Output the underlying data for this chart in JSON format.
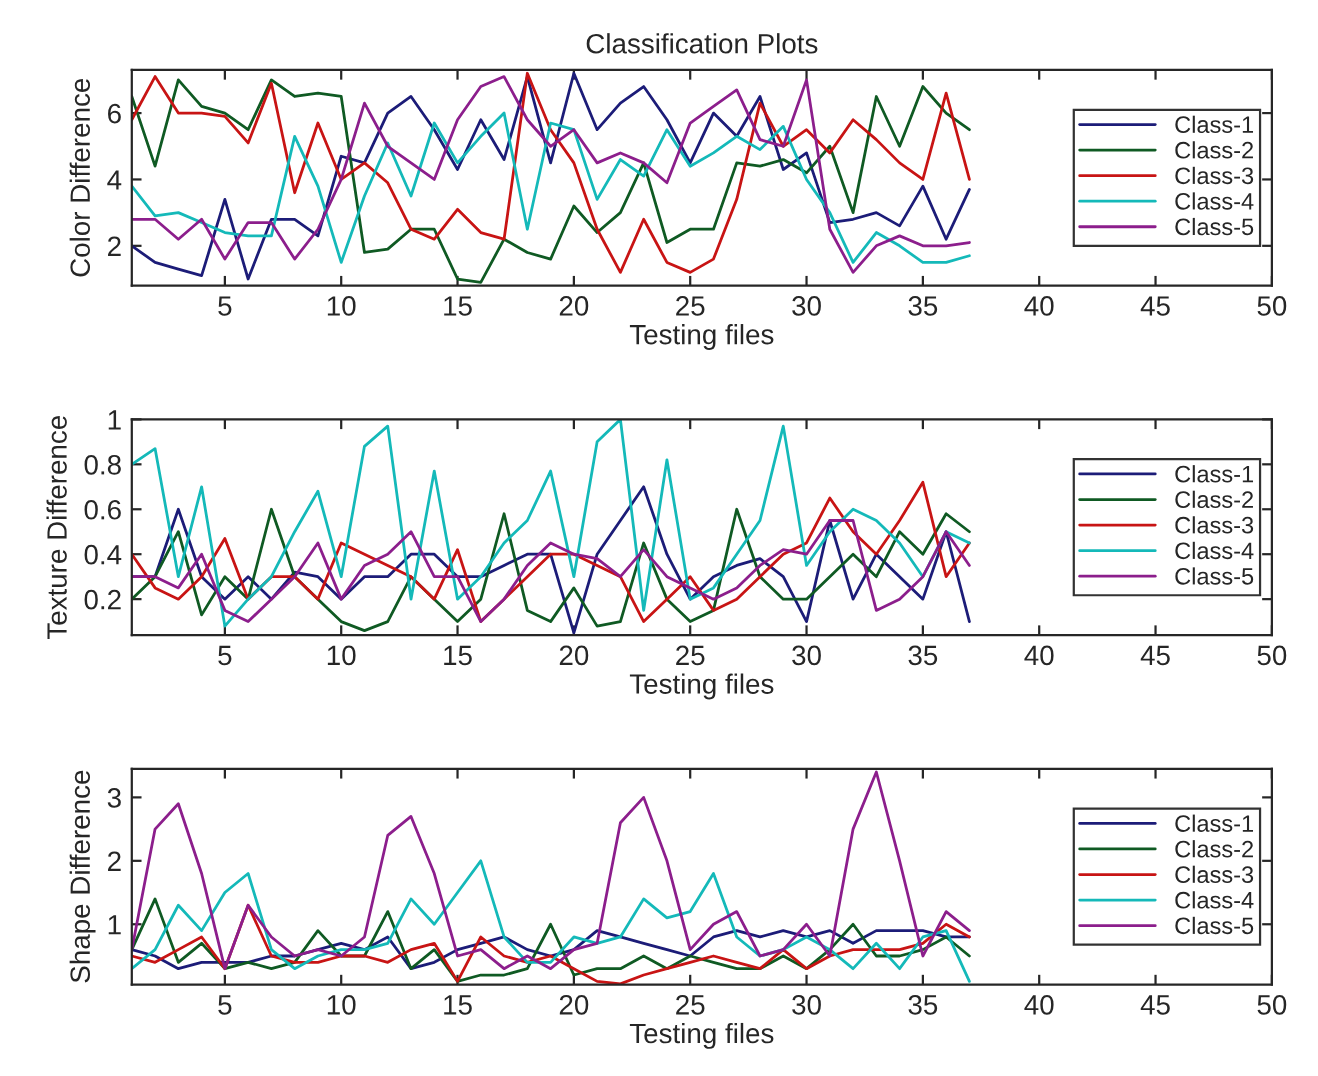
{
  "chart_data": [
    {
      "type": "line",
      "title": "Classification Plots",
      "xlabel": "Testing files",
      "ylabel": "Color Difference",
      "x": [
        1,
        2,
        3,
        4,
        5,
        6,
        7,
        8,
        9,
        10,
        11,
        12,
        13,
        14,
        15,
        16,
        17,
        18,
        19,
        20,
        21,
        22,
        23,
        24,
        25,
        26,
        27,
        28,
        29,
        30,
        31,
        32,
        33,
        34,
        35,
        36,
        37
      ],
      "xlim": [
        1,
        50
      ],
      "xticks": [
        5,
        10,
        15,
        20,
        25,
        30,
        35,
        40,
        45,
        50
      ],
      "ylim": [
        0.8,
        7.3
      ],
      "yticks": [
        2,
        4,
        6
      ],
      "grid": false,
      "legend": "right",
      "series": [
        {
          "name": "Class-1",
          "color": "#1c1c78",
          "values": [
            2.0,
            1.5,
            1.3,
            1.1,
            3.4,
            1.0,
            2.8,
            2.8,
            2.3,
            4.7,
            4.5,
            6.0,
            6.5,
            5.5,
            4.3,
            5.8,
            4.6,
            7.1,
            4.5,
            7.2,
            5.5,
            6.3,
            6.8,
            5.8,
            4.5,
            6.0,
            5.3,
            6.5,
            4.3,
            4.8,
            2.7,
            2.8,
            3.0,
            2.6,
            3.8,
            2.2,
            3.7
          ]
        },
        {
          "name": "Class-2",
          "color": "#0f5a23",
          "values": [
            6.5,
            4.4,
            7.0,
            6.2,
            6.0,
            5.5,
            7.0,
            6.5,
            6.6,
            6.5,
            1.8,
            1.9,
            2.5,
            2.5,
            1.0,
            0.9,
            2.2,
            1.8,
            1.6,
            3.2,
            2.4,
            3.0,
            4.5,
            2.1,
            2.5,
            2.5,
            4.5,
            4.4,
            4.6,
            4.2,
            5.0,
            3.0,
            6.5,
            5.0,
            6.8,
            6.0,
            5.5
          ]
        },
        {
          "name": "Class-3",
          "color": "#c81414",
          "values": [
            5.8,
            7.1,
            6.0,
            6.0,
            5.9,
            5.1,
            6.9,
            3.6,
            5.7,
            4.0,
            4.5,
            3.9,
            2.5,
            2.2,
            3.1,
            2.4,
            2.2,
            7.2,
            5.5,
            4.5,
            2.5,
            1.2,
            2.8,
            1.5,
            1.2,
            1.6,
            3.4,
            6.3,
            5.0,
            5.5,
            4.8,
            5.8,
            5.2,
            4.5,
            4.0,
            6.6,
            4.0
          ]
        },
        {
          "name": "Class-4",
          "color": "#14b9b9",
          "values": [
            3.8,
            2.9,
            3.0,
            2.7,
            2.4,
            2.3,
            2.3,
            5.3,
            3.8,
            1.5,
            3.5,
            5.1,
            3.5,
            5.7,
            4.5,
            5.3,
            6.0,
            2.5,
            5.7,
            5.5,
            3.4,
            4.6,
            4.1,
            5.5,
            4.4,
            4.8,
            5.3,
            4.9,
            5.6,
            4.0,
            3.0,
            1.5,
            2.4,
            2.0,
            1.5,
            1.5,
            1.7
          ]
        },
        {
          "name": "Class-5",
          "color": "#8c1e8c",
          "values": [
            2.8,
            2.8,
            2.2,
            2.8,
            1.6,
            2.7,
            2.7,
            1.6,
            2.5,
            4.0,
            6.3,
            5.0,
            4.5,
            4.0,
            5.8,
            6.8,
            7.1,
            5.8,
            5.0,
            5.5,
            4.5,
            4.8,
            4.5,
            3.9,
            5.7,
            6.2,
            6.7,
            5.2,
            5.0,
            7.0,
            2.5,
            1.2,
            2.0,
            2.3,
            2.0,
            2.0,
            2.1
          ]
        }
      ]
    },
    {
      "type": "line",
      "xlabel": "Testing files",
      "ylabel": "Texture Difference",
      "x": [
        1,
        2,
        3,
        4,
        5,
        6,
        7,
        8,
        9,
        10,
        11,
        12,
        13,
        14,
        15,
        16,
        17,
        18,
        19,
        20,
        21,
        22,
        23,
        24,
        25,
        26,
        27,
        28,
        29,
        30,
        31,
        32,
        33,
        34,
        35,
        36,
        37
      ],
      "xlim": [
        1,
        50
      ],
      "xticks": [
        5,
        10,
        15,
        20,
        25,
        30,
        35,
        40,
        45,
        50
      ],
      "ylim": [
        0.04,
        1
      ],
      "yticks": [
        0.2,
        0.4,
        0.6,
        0.8,
        1
      ],
      "grid": false,
      "legend": "right",
      "series": [
        {
          "name": "Class-1",
          "color": "#1c1c78",
          "values": [
            0.3,
            0.3,
            0.6,
            0.3,
            0.2,
            0.3,
            0.2,
            0.32,
            0.3,
            0.2,
            0.3,
            0.3,
            0.4,
            0.4,
            0.3,
            0.3,
            0.35,
            0.4,
            0.4,
            0.05,
            0.4,
            0.55,
            0.7,
            0.4,
            0.2,
            0.3,
            0.35,
            0.38,
            0.3,
            0.1,
            0.55,
            0.2,
            0.4,
            0.3,
            0.2,
            0.5,
            0.1
          ]
        },
        {
          "name": "Class-2",
          "color": "#0f5a23",
          "values": [
            0.2,
            0.3,
            0.5,
            0.13,
            0.3,
            0.2,
            0.6,
            0.3,
            0.2,
            0.1,
            0.06,
            0.1,
            0.3,
            0.2,
            0.1,
            0.2,
            0.58,
            0.15,
            0.1,
            0.25,
            0.08,
            0.1,
            0.45,
            0.2,
            0.1,
            0.15,
            0.6,
            0.3,
            0.2,
            0.2,
            0.3,
            0.4,
            0.3,
            0.5,
            0.4,
            0.58,
            0.5
          ]
        },
        {
          "name": "Class-3",
          "color": "#c81414",
          "values": [
            0.4,
            0.25,
            0.2,
            0.3,
            0.47,
            0.2,
            0.3,
            0.3,
            0.2,
            0.45,
            0.4,
            0.35,
            0.3,
            0.2,
            0.42,
            0.1,
            0.2,
            0.3,
            0.4,
            0.4,
            0.35,
            0.3,
            0.1,
            0.2,
            0.3,
            0.15,
            0.2,
            0.3,
            0.4,
            0.45,
            0.65,
            0.5,
            0.4,
            0.55,
            0.72,
            0.3,
            0.45
          ]
        },
        {
          "name": "Class-4",
          "color": "#14b9b9",
          "values": [
            0.8,
            0.87,
            0.3,
            0.7,
            0.08,
            0.2,
            0.3,
            0.5,
            0.68,
            0.3,
            0.88,
            0.97,
            0.2,
            0.77,
            0.2,
            0.3,
            0.45,
            0.55,
            0.77,
            0.3,
            0.9,
            1.0,
            0.15,
            0.82,
            0.2,
            0.25,
            0.4,
            0.55,
            0.97,
            0.35,
            0.5,
            0.6,
            0.55,
            0.45,
            0.3,
            0.5,
            0.45
          ]
        },
        {
          "name": "Class-5",
          "color": "#8c1e8c",
          "values": [
            0.3,
            0.3,
            0.25,
            0.4,
            0.15,
            0.1,
            0.2,
            0.3,
            0.45,
            0.2,
            0.35,
            0.4,
            0.5,
            0.3,
            0.3,
            0.1,
            0.2,
            0.35,
            0.45,
            0.4,
            0.38,
            0.3,
            0.42,
            0.3,
            0.25,
            0.2,
            0.25,
            0.35,
            0.42,
            0.4,
            0.55,
            0.55,
            0.15,
            0.2,
            0.3,
            0.5,
            0.35
          ]
        }
      ]
    },
    {
      "type": "line",
      "xlabel": "Testing files",
      "ylabel": "Shape Difference",
      "x": [
        1,
        2,
        3,
        4,
        5,
        6,
        7,
        8,
        9,
        10,
        11,
        12,
        13,
        14,
        15,
        16,
        17,
        18,
        19,
        20,
        21,
        22,
        23,
        24,
        25,
        26,
        27,
        28,
        29,
        30,
        31,
        32,
        33,
        34,
        35,
        36,
        37
      ],
      "xlim": [
        1,
        50
      ],
      "xticks": [
        5,
        10,
        15,
        20,
        25,
        30,
        35,
        40,
        45,
        50
      ],
      "ylim": [
        0.05,
        3.45
      ],
      "yticks": [
        1,
        2,
        3
      ],
      "grid": false,
      "legend": "right",
      "series": [
        {
          "name": "Class-1",
          "color": "#1c1c78",
          "values": [
            0.6,
            0.5,
            0.3,
            0.4,
            0.4,
            0.4,
            0.5,
            0.5,
            0.6,
            0.7,
            0.6,
            0.8,
            0.3,
            0.4,
            0.6,
            0.7,
            0.8,
            0.6,
            0.5,
            0.6,
            0.9,
            0.8,
            0.7,
            0.6,
            0.5,
            0.8,
            0.9,
            0.8,
            0.9,
            0.8,
            0.9,
            0.7,
            0.9,
            0.9,
            0.9,
            0.8,
            0.8
          ]
        },
        {
          "name": "Class-2",
          "color": "#0f5a23",
          "values": [
            0.6,
            1.4,
            0.4,
            0.7,
            0.3,
            0.4,
            0.3,
            0.4,
            0.9,
            0.5,
            0.5,
            1.2,
            0.3,
            0.6,
            0.1,
            0.2,
            0.2,
            0.3,
            1.0,
            0.2,
            0.3,
            0.3,
            0.5,
            0.3,
            0.5,
            0.4,
            0.3,
            0.3,
            0.5,
            0.3,
            0.6,
            1.0,
            0.5,
            0.5,
            0.6,
            0.8,
            0.5
          ]
        },
        {
          "name": "Class-3",
          "color": "#c81414",
          "values": [
            0.5,
            0.4,
            0.6,
            0.8,
            0.3,
            1.3,
            0.5,
            0.4,
            0.4,
            0.5,
            0.5,
            0.4,
            0.6,
            0.7,
            0.1,
            0.8,
            0.5,
            0.4,
            0.5,
            0.3,
            0.1,
            0.06,
            0.2,
            0.3,
            0.4,
            0.5,
            0.4,
            0.3,
            0.6,
            0.3,
            0.5,
            0.6,
            0.6,
            0.6,
            0.7,
            1.0,
            0.8
          ]
        },
        {
          "name": "Class-4",
          "color": "#14b9b9",
          "values": [
            0.3,
            0.6,
            1.3,
            0.9,
            1.5,
            1.8,
            0.6,
            0.3,
            0.5,
            0.6,
            0.6,
            0.7,
            1.4,
            1.0,
            1.5,
            2.0,
            0.8,
            0.4,
            0.4,
            0.8,
            0.7,
            0.8,
            1.4,
            1.1,
            1.2,
            1.8,
            0.8,
            0.5,
            0.6,
            0.8,
            0.6,
            0.3,
            0.7,
            0.3,
            0.8,
            0.9,
            0.1
          ]
        },
        {
          "name": "Class-5",
          "color": "#8c1e8c",
          "values": [
            0.6,
            2.5,
            2.9,
            1.8,
            0.3,
            1.3,
            0.8,
            0.5,
            0.6,
            0.5,
            0.8,
            2.4,
            2.7,
            1.8,
            0.5,
            0.6,
            0.3,
            0.5,
            0.3,
            0.6,
            0.7,
            2.6,
            3.0,
            2.0,
            0.6,
            1.0,
            1.2,
            0.5,
            0.6,
            1.0,
            0.5,
            2.5,
            3.4,
            2.0,
            0.5,
            1.2,
            0.9
          ]
        }
      ]
    }
  ]
}
